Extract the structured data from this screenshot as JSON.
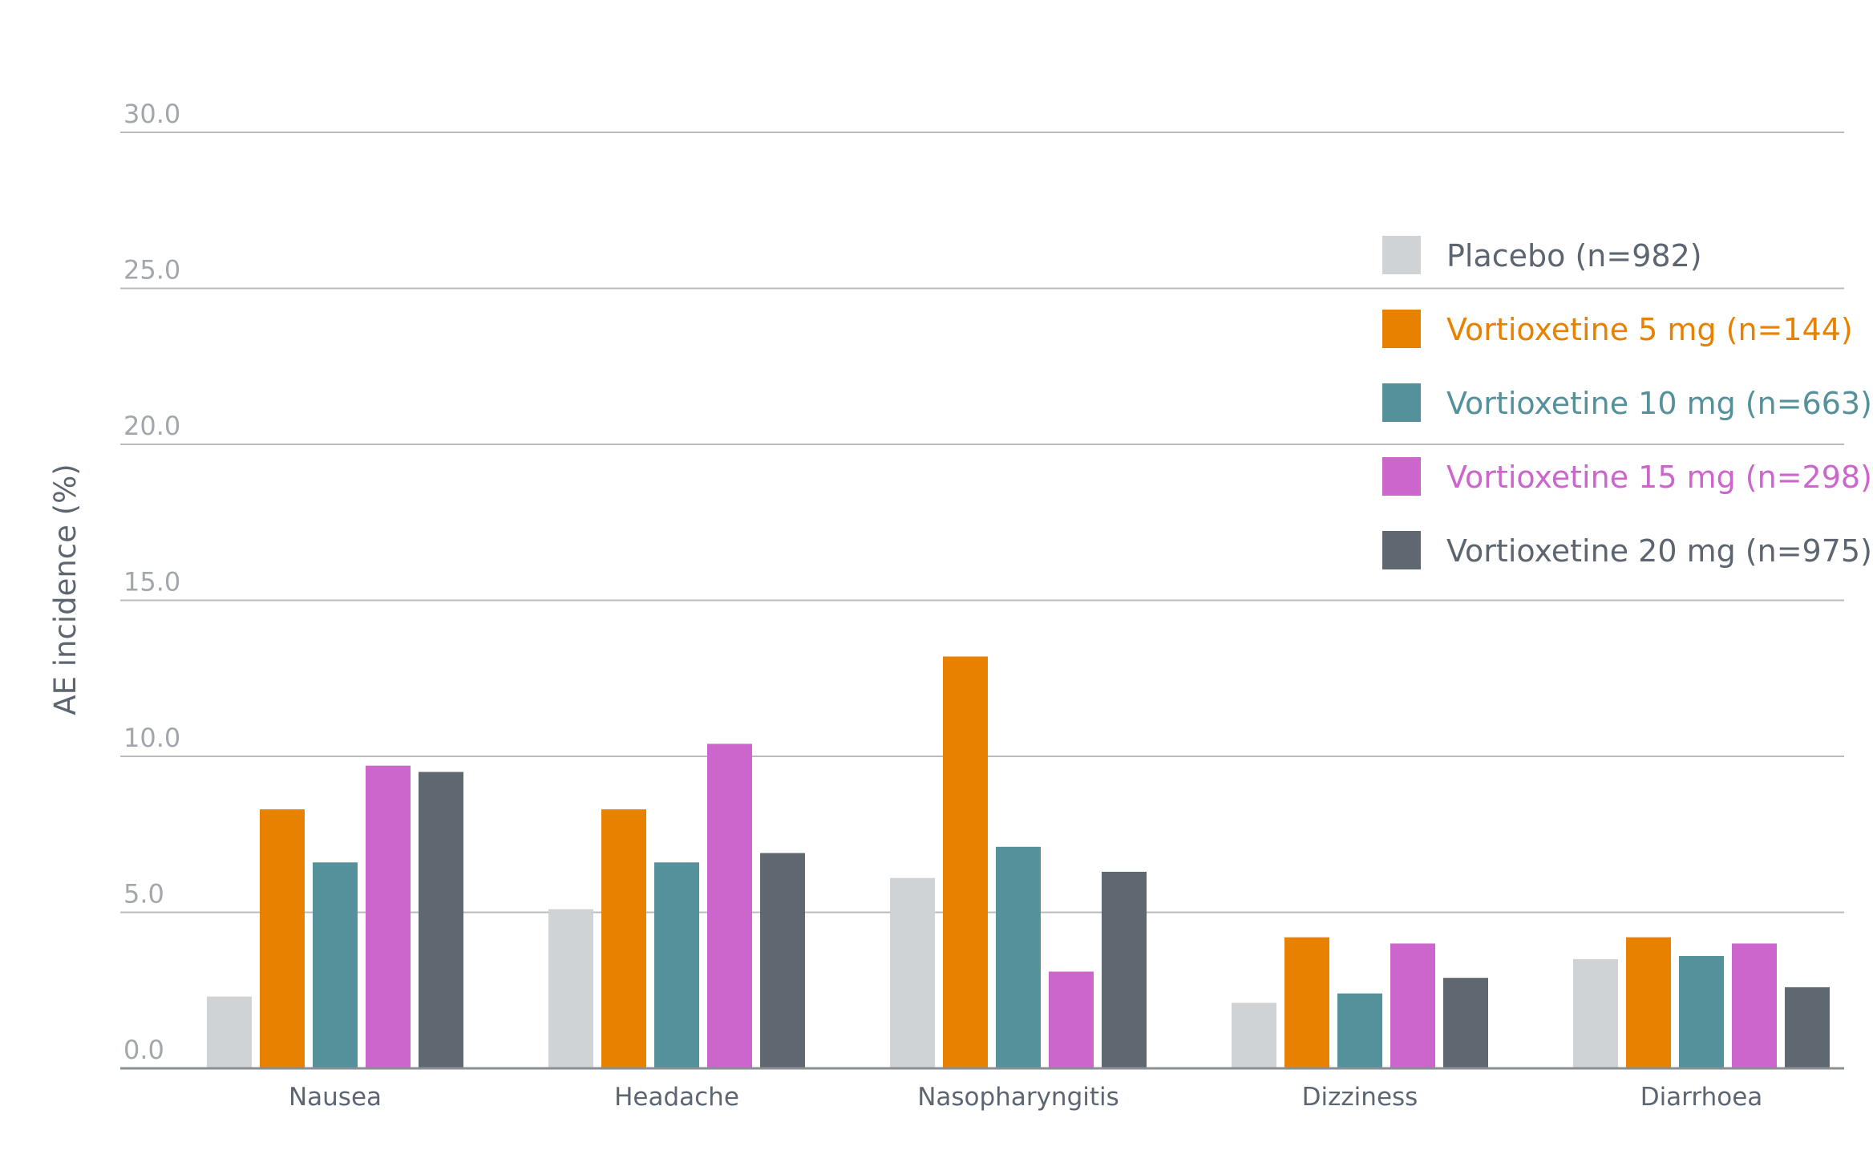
{
  "chart_data": {
    "type": "bar",
    "ylabel": "AE incidence (%)",
    "xlabel": "",
    "ylim": [
      0,
      30
    ],
    "yticks": [
      "0.0",
      "5.0",
      "10.0",
      "15.0",
      "20.0",
      "25.0",
      "30.0"
    ],
    "grid": true,
    "legend_position": "right",
    "categories": [
      "Nausea",
      "Headache",
      "Nasopharyngitis",
      "Dizziness",
      "Diarrhoea"
    ],
    "series": [
      {
        "name": "Placebo (n=982)",
        "color": "#d0d3d6",
        "values": [
          2.3,
          5.1,
          6.1,
          2.1,
          3.5
        ]
      },
      {
        "name": "Vortioxetine 5 mg (n=144)",
        "color": "#e88100",
        "values": [
          8.3,
          8.3,
          13.2,
          4.2,
          4.2
        ]
      },
      {
        "name": "Vortioxetine 10 mg (n=663)",
        "color": "#55919a",
        "values": [
          6.6,
          6.6,
          7.1,
          2.4,
          3.6
        ]
      },
      {
        "name": "Vortioxetine 15 mg (n=298)",
        "color": "#cc66cc",
        "values": [
          9.7,
          10.4,
          3.1,
          4.0,
          4.0
        ]
      },
      {
        "name": "Vortioxetine 20 mg (n=975)",
        "color": "#5f6871",
        "values": [
          9.5,
          6.9,
          6.3,
          2.9,
          2.6
        ]
      }
    ]
  },
  "colors": {
    "text": "#5d6670",
    "tick": "#a3a7ab",
    "grid": "#b9bcbf",
    "axis": "#8a8f94"
  }
}
